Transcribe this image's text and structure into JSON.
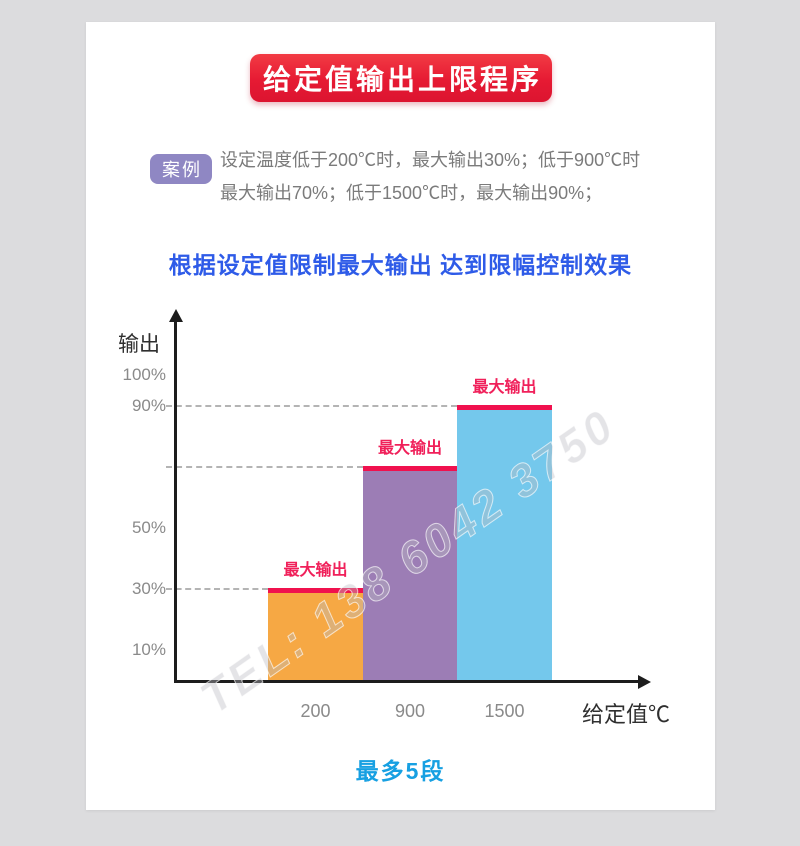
{
  "page": {
    "background": "#dcdcde",
    "card_background": "#ffffff"
  },
  "title": {
    "text": "给定值输出上限程序",
    "bg_color": "#e61a33",
    "text_color": "#ffffff"
  },
  "case": {
    "badge": "案例",
    "badge_bg": "#8f87c3",
    "line1": "设定温度低于200℃时，最大输出30%；低于900℃时",
    "line2": "最大输出70%；低于1500℃时，最大输出90%；"
  },
  "subtitle": {
    "text": "根据设定值限制最大输出 达到限幅控制效果",
    "color": "#2e5be8"
  },
  "chart_data": {
    "type": "bar",
    "title": "",
    "ylabel": "输出",
    "xlabel": "给定值℃",
    "categories": [
      "200",
      "900",
      "1500"
    ],
    "values": [
      30,
      70,
      90
    ],
    "y_ticks": [
      "100%",
      "90%",
      "50%",
      "30%",
      "10%"
    ],
    "y_tick_values": [
      100,
      90,
      50,
      30,
      10
    ],
    "ylim": [
      0,
      100
    ],
    "bar_colors": [
      "#f6a844",
      "#9c7db5",
      "#74c8ec"
    ],
    "cap_color": "#f0114e",
    "bar_label": "最大输出",
    "label_color": "#f0205a",
    "dashed_levels": [
      30,
      70,
      90
    ],
    "grid": "dashed lines at bar tops only",
    "legend": "none",
    "axis_color": "#1d1d1d"
  },
  "watermark": {
    "text": "TEL: 138 6042 3750"
  },
  "footer": {
    "text": "最多5段",
    "color": "#17a0e2"
  }
}
